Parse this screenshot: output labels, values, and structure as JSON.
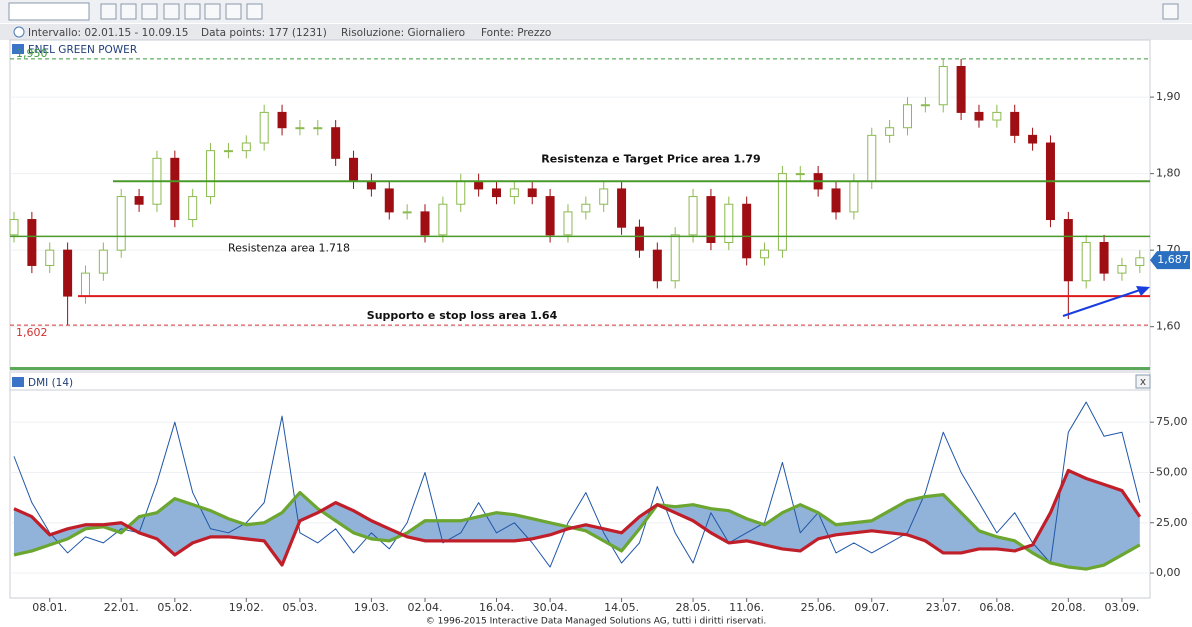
{
  "toolbar": {
    "interval": "Intervallo:  02.01.15 - 10.09.15",
    "data_points": "Data points:  177 (1231)",
    "resolution": "Risoluzione:  Giornaliero",
    "source": "Fonte:  Prezzo"
  },
  "close_button": "x",
  "footer": "© 1996-2015 Interactive Data Managed Solutions AG, tutti i diritti riservati.",
  "chart_data": [
    {
      "type": "candlestick",
      "title": "ENEL GREEN POWER",
      "open": [
        1.72,
        1.74,
        1.68,
        1.7,
        1.64,
        1.67,
        1.7,
        1.77,
        1.76,
        1.82,
        1.74,
        1.77,
        1.83,
        1.83,
        1.84,
        1.88,
        1.86,
        1.86,
        1.86,
        1.82,
        1.79,
        1.78,
        1.75,
        1.75,
        1.72,
        1.76,
        1.79,
        1.78,
        1.77,
        1.78,
        1.77,
        1.72,
        1.75,
        1.76,
        1.78,
        1.73,
        1.7,
        1.66,
        1.72,
        1.77,
        1.71,
        1.76,
        1.69,
        1.7,
        1.8,
        1.8,
        1.78,
        1.75,
        1.79,
        1.85,
        1.86,
        1.89,
        1.89,
        1.94,
        1.88,
        1.87,
        1.88,
        1.85,
        1.84,
        1.74,
        1.66,
        1.71,
        1.67,
        1.68
      ],
      "high": [
        1.75,
        1.75,
        1.71,
        1.71,
        1.68,
        1.71,
        1.78,
        1.78,
        1.83,
        1.83,
        1.78,
        1.84,
        1.84,
        1.85,
        1.89,
        1.89,
        1.87,
        1.87,
        1.87,
        1.83,
        1.8,
        1.79,
        1.76,
        1.76,
        1.77,
        1.8,
        1.8,
        1.79,
        1.79,
        1.79,
        1.78,
        1.76,
        1.77,
        1.79,
        1.79,
        1.74,
        1.71,
        1.73,
        1.78,
        1.78,
        1.77,
        1.77,
        1.71,
        1.81,
        1.81,
        1.81,
        1.79,
        1.8,
        1.86,
        1.87,
        1.9,
        1.9,
        1.95,
        1.95,
        1.89,
        1.89,
        1.89,
        1.86,
        1.85,
        1.75,
        1.72,
        1.72,
        1.69,
        1.7
      ],
      "low": [
        1.71,
        1.67,
        1.67,
        1.602,
        1.63,
        1.66,
        1.69,
        1.75,
        1.75,
        1.73,
        1.73,
        1.76,
        1.82,
        1.82,
        1.83,
        1.85,
        1.85,
        1.85,
        1.81,
        1.78,
        1.77,
        1.74,
        1.74,
        1.71,
        1.71,
        1.75,
        1.77,
        1.76,
        1.76,
        1.76,
        1.71,
        1.71,
        1.74,
        1.75,
        1.72,
        1.69,
        1.65,
        1.65,
        1.71,
        1.7,
        1.7,
        1.68,
        1.68,
        1.69,
        1.79,
        1.77,
        1.74,
        1.74,
        1.78,
        1.84,
        1.85,
        1.88,
        1.88,
        1.87,
        1.86,
        1.86,
        1.84,
        1.83,
        1.73,
        1.61,
        1.65,
        1.66,
        1.66,
        1.67
      ],
      "close": [
        1.74,
        1.68,
        1.7,
        1.64,
        1.67,
        1.7,
        1.77,
        1.76,
        1.82,
        1.74,
        1.77,
        1.83,
        1.83,
        1.84,
        1.88,
        1.86,
        1.86,
        1.86,
        1.82,
        1.79,
        1.78,
        1.75,
        1.75,
        1.72,
        1.76,
        1.79,
        1.78,
        1.77,
        1.78,
        1.77,
        1.72,
        1.75,
        1.76,
        1.78,
        1.73,
        1.7,
        1.66,
        1.72,
        1.77,
        1.71,
        1.76,
        1.69,
        1.7,
        1.8,
        1.8,
        1.78,
        1.75,
        1.79,
        1.85,
        1.86,
        1.89,
        1.89,
        1.94,
        1.88,
        1.87,
        1.88,
        1.85,
        1.84,
        1.74,
        1.66,
        1.71,
        1.67,
        1.68,
        1.69
      ],
      "up_color": "#8cba4f",
      "down_color": "#9e0e12",
      "ylim": [
        1.546,
        1.972
      ],
      "yticks": [
        {
          "value": 1.6,
          "label": "1,60"
        },
        {
          "value": 1.7,
          "label": "1,70"
        },
        {
          "value": 1.8,
          "label": "1,80"
        },
        {
          "value": 1.9,
          "label": "1,90"
        }
      ],
      "grid": true,
      "markers": [
        {
          "value": 1.95,
          "label": "1,950",
          "color": "#3a9a3a"
        },
        {
          "value": 1.602,
          "label": "1,602",
          "color": "#d03030"
        },
        {
          "value": 1.687,
          "label": "1,687",
          "color": "#2a6fc0"
        }
      ],
      "levels": [
        {
          "value": 1.79,
          "text": "Resistenza e Target Price area 1.79",
          "color": "#4a9a2a"
        },
        {
          "value": 1.718,
          "text": "Resistenza area 1.718",
          "color": "#4a9a2a"
        },
        {
          "value": 1.64,
          "text": "Supporto e stop loss area 1.64",
          "color": "#e01a1a"
        }
      ]
    },
    {
      "type": "line",
      "title": "DMI (14)",
      "categories": [
        null,
        null,
        "08.01.",
        null,
        null,
        null,
        "22.01.",
        null,
        null,
        "05.02.",
        null,
        null,
        null,
        "19.02.",
        null,
        null,
        "05.03.",
        null,
        null,
        null,
        "19.03.",
        null,
        null,
        "02.04.",
        null,
        null,
        null,
        "16.04.",
        null,
        null,
        "30.04.",
        null,
        null,
        null,
        "14.05.",
        null,
        null,
        null,
        "28.05.",
        null,
        null,
        "11.06.",
        null,
        null,
        null,
        "25.06.",
        null,
        null,
        "09.07.",
        null,
        null,
        null,
        "23.07.",
        null,
        null,
        "06.08.",
        null,
        null,
        null,
        "20.08.",
        null,
        null,
        "03.09.",
        null
      ],
      "series": [
        {
          "color": "#1f56a8",
          "values": [
            58,
            35,
            20,
            10,
            18,
            15,
            22,
            20,
            45,
            75,
            40,
            22,
            20,
            25,
            35,
            78,
            20,
            15,
            22,
            10,
            20,
            12,
            25,
            50,
            15,
            20,
            35,
            20,
            25,
            15,
            3,
            25,
            40,
            20,
            5,
            15,
            43,
            20,
            5,
            30,
            15,
            20,
            25,
            55,
            20,
            30,
            10,
            15,
            10,
            15,
            20,
            40,
            70,
            50,
            35,
            20,
            30,
            15,
            5,
            70,
            85,
            68,
            70,
            35
          ]
        },
        {
          "color": "#6aa630",
          "values": [
            9,
            11,
            14,
            17,
            22,
            23,
            20,
            28,
            30,
            37,
            34,
            31,
            27,
            24,
            25,
            30,
            40,
            32,
            26,
            20,
            17,
            16,
            20,
            26,
            26,
            26,
            28,
            30,
            29,
            27,
            25,
            23,
            21,
            16,
            11,
            22,
            34,
            33,
            34,
            32,
            31,
            27,
            24,
            30,
            34,
            30,
            24,
            25,
            26,
            31,
            36,
            38,
            39,
            30,
            21,
            18,
            16,
            10,
            5,
            3,
            2,
            4,
            9,
            14
          ]
        },
        {
          "color": "#c01f2a",
          "values": [
            32,
            28,
            19,
            22,
            24,
            24,
            25,
            20,
            17,
            9,
            15,
            18,
            18,
            17,
            16,
            4,
            26,
            30,
            35,
            31,
            26,
            22,
            18,
            16,
            16,
            16,
            16,
            16,
            16,
            17,
            19,
            22,
            24,
            22,
            20,
            28,
            34,
            30,
            26,
            20,
            15,
            16,
            14,
            12,
            11,
            17,
            19,
            20,
            21,
            20,
            19,
            16,
            10,
            10,
            12,
            12,
            11,
            14,
            30,
            51,
            47,
            44,
            41,
            28
          ]
        }
      ],
      "fill_color": "#7fa6d2",
      "ylim": [
        -12.4,
        90
      ],
      "yticks": [
        {
          "value": 0,
          "label": "0,00"
        },
        {
          "value": 25,
          "label": "25,00"
        },
        {
          "value": 50,
          "label": "50,00"
        },
        {
          "value": 75,
          "label": "75,00"
        }
      ],
      "grid": true
    }
  ]
}
